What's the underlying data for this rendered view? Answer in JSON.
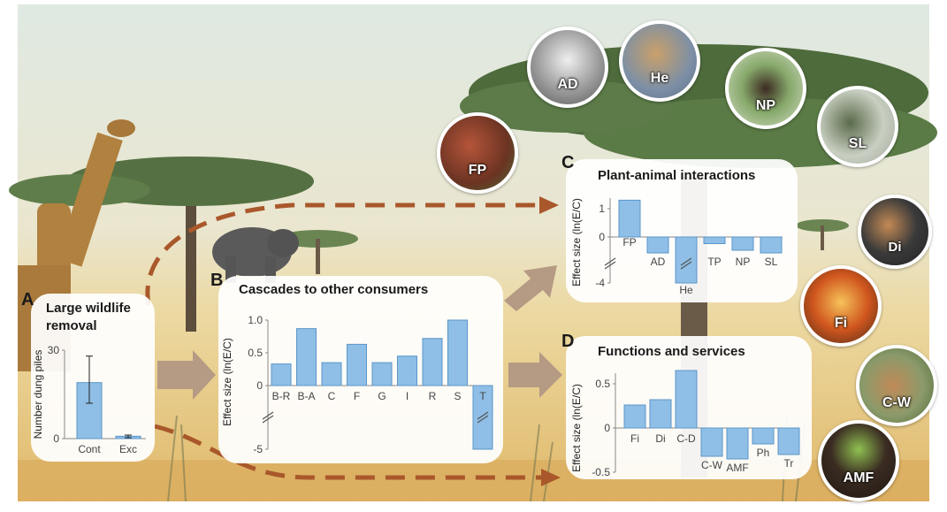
{
  "colors": {
    "bar": "#8fbfe6",
    "bar_stroke": "#5b95c9",
    "arrow_solid": "#b59a84",
    "arrow_dash": "#a9582b"
  },
  "panels": {
    "a": {
      "letter": "A",
      "title_line1": "Large wildlife",
      "title_line2": "removal"
    },
    "b": {
      "letter": "B",
      "title": "Cascades to other consumers"
    },
    "c": {
      "letter": "C",
      "title": "Plant-animal interactions"
    },
    "d": {
      "letter": "D",
      "title": "Functions and services"
    }
  },
  "photo_labels": {
    "fp": "FP",
    "ad": "AD",
    "he": "He",
    "np": "NP",
    "sl": "SL",
    "di": "Di",
    "fi": "Fi",
    "cw": "C-W",
    "amf": "AMF"
  },
  "chart_data": [
    {
      "id": "A",
      "type": "bar",
      "ylabel": "Number dung piles",
      "categories": [
        "Cont",
        "Exc"
      ],
      "values": [
        19,
        0.8
      ],
      "error_low": [
        12,
        0.3
      ],
      "error_high": [
        28,
        1.2
      ],
      "ylim": [
        0,
        30
      ],
      "yticks": [
        0,
        30
      ]
    },
    {
      "id": "B",
      "type": "bar",
      "ylabel": "Effect size (ln(E/C)",
      "categories": [
        "B-R",
        "B-A",
        "C",
        "F",
        "G",
        "I",
        "R",
        "S",
        "T"
      ],
      "values": [
        0.33,
        0.87,
        0.35,
        0.63,
        0.35,
        0.45,
        0.72,
        1.0,
        -5.0
      ],
      "ylim": [
        -5,
        1.0
      ],
      "yticks": [
        "1.0",
        "0.5",
        "0",
        "-5"
      ],
      "axis_break": true
    },
    {
      "id": "C",
      "type": "bar",
      "ylabel": "Effect size (ln(E/C)",
      "categories": [
        "FP",
        "AD",
        "He",
        "TP",
        "NP",
        "SL"
      ],
      "values": [
        1.3,
        -0.6,
        -4.0,
        -0.25,
        -0.5,
        -0.6
      ],
      "ylim": [
        -4,
        1
      ],
      "yticks": [
        "1",
        "0",
        "-4"
      ],
      "axis_break": true
    },
    {
      "id": "D",
      "type": "bar",
      "ylabel": "Effect size (ln(E/C)",
      "categories": [
        "Fi",
        "Di",
        "C-D",
        "C-W",
        "AMF",
        "Ph",
        "Tr"
      ],
      "values": [
        0.26,
        0.32,
        0.65,
        -0.32,
        -0.35,
        -0.18,
        -0.3
      ],
      "ylim": [
        -0.5,
        0.5
      ],
      "yticks": [
        "0.5",
        "0",
        "-0.5"
      ]
    }
  ]
}
